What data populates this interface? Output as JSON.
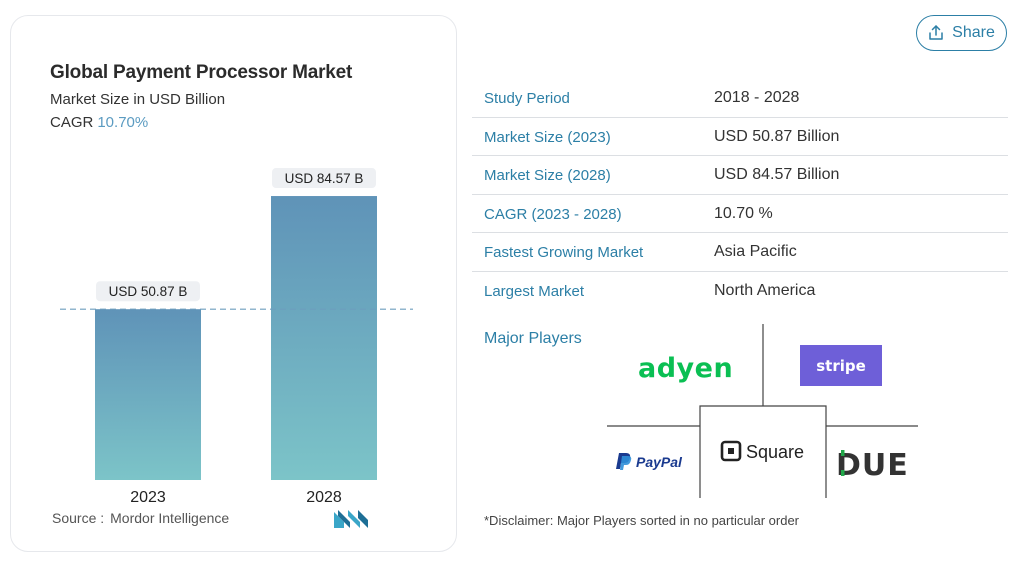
{
  "chart_data": {
    "type": "bar",
    "title": "Global Payment Processor Market",
    "subtitle": "Market Size in USD Billion",
    "cagr_label": "CAGR",
    "cagr_value": "10.70%",
    "categories": [
      "2023",
      "2028"
    ],
    "values": [
      50.87,
      84.57
    ],
    "data_labels": [
      "USD 50.87 B",
      "USD 84.57 B"
    ],
    "ylim": [
      0,
      100
    ],
    "grid": false,
    "reference_line": "dashed line at 2023 value",
    "colors": {
      "bar_top": "#5f93b8",
      "bar_bottom": "#7cc4c8",
      "label_bg": "#eef0f3",
      "dashed_line": "#6d9dbd"
    }
  },
  "source": {
    "label": "Source :",
    "name": "Mordor Intelligence"
  },
  "share": {
    "label": "Share",
    "icon": "share-icon"
  },
  "info_rows": [
    {
      "label": "Study Period",
      "value": "2018 - 2028"
    },
    {
      "label": "Market Size (2023)",
      "value": "USD 50.87 Billion"
    },
    {
      "label": "Market Size (2028)",
      "value": "USD 84.57 Billion"
    },
    {
      "label": "CAGR (2023 - 2028)",
      "value": "10.70 %"
    },
    {
      "label": "Fastest Growing Market",
      "value": "Asia Pacific"
    },
    {
      "label": "Largest Market",
      "value": "North America"
    }
  ],
  "major_players": {
    "label": "Major Players",
    "players": [
      "adyen",
      "stripe",
      "PayPal",
      "Square",
      "DUE"
    ]
  },
  "disclaimer": "*Disclaimer: Major Players sorted in no particular order",
  "accent": "#2c7fa6"
}
